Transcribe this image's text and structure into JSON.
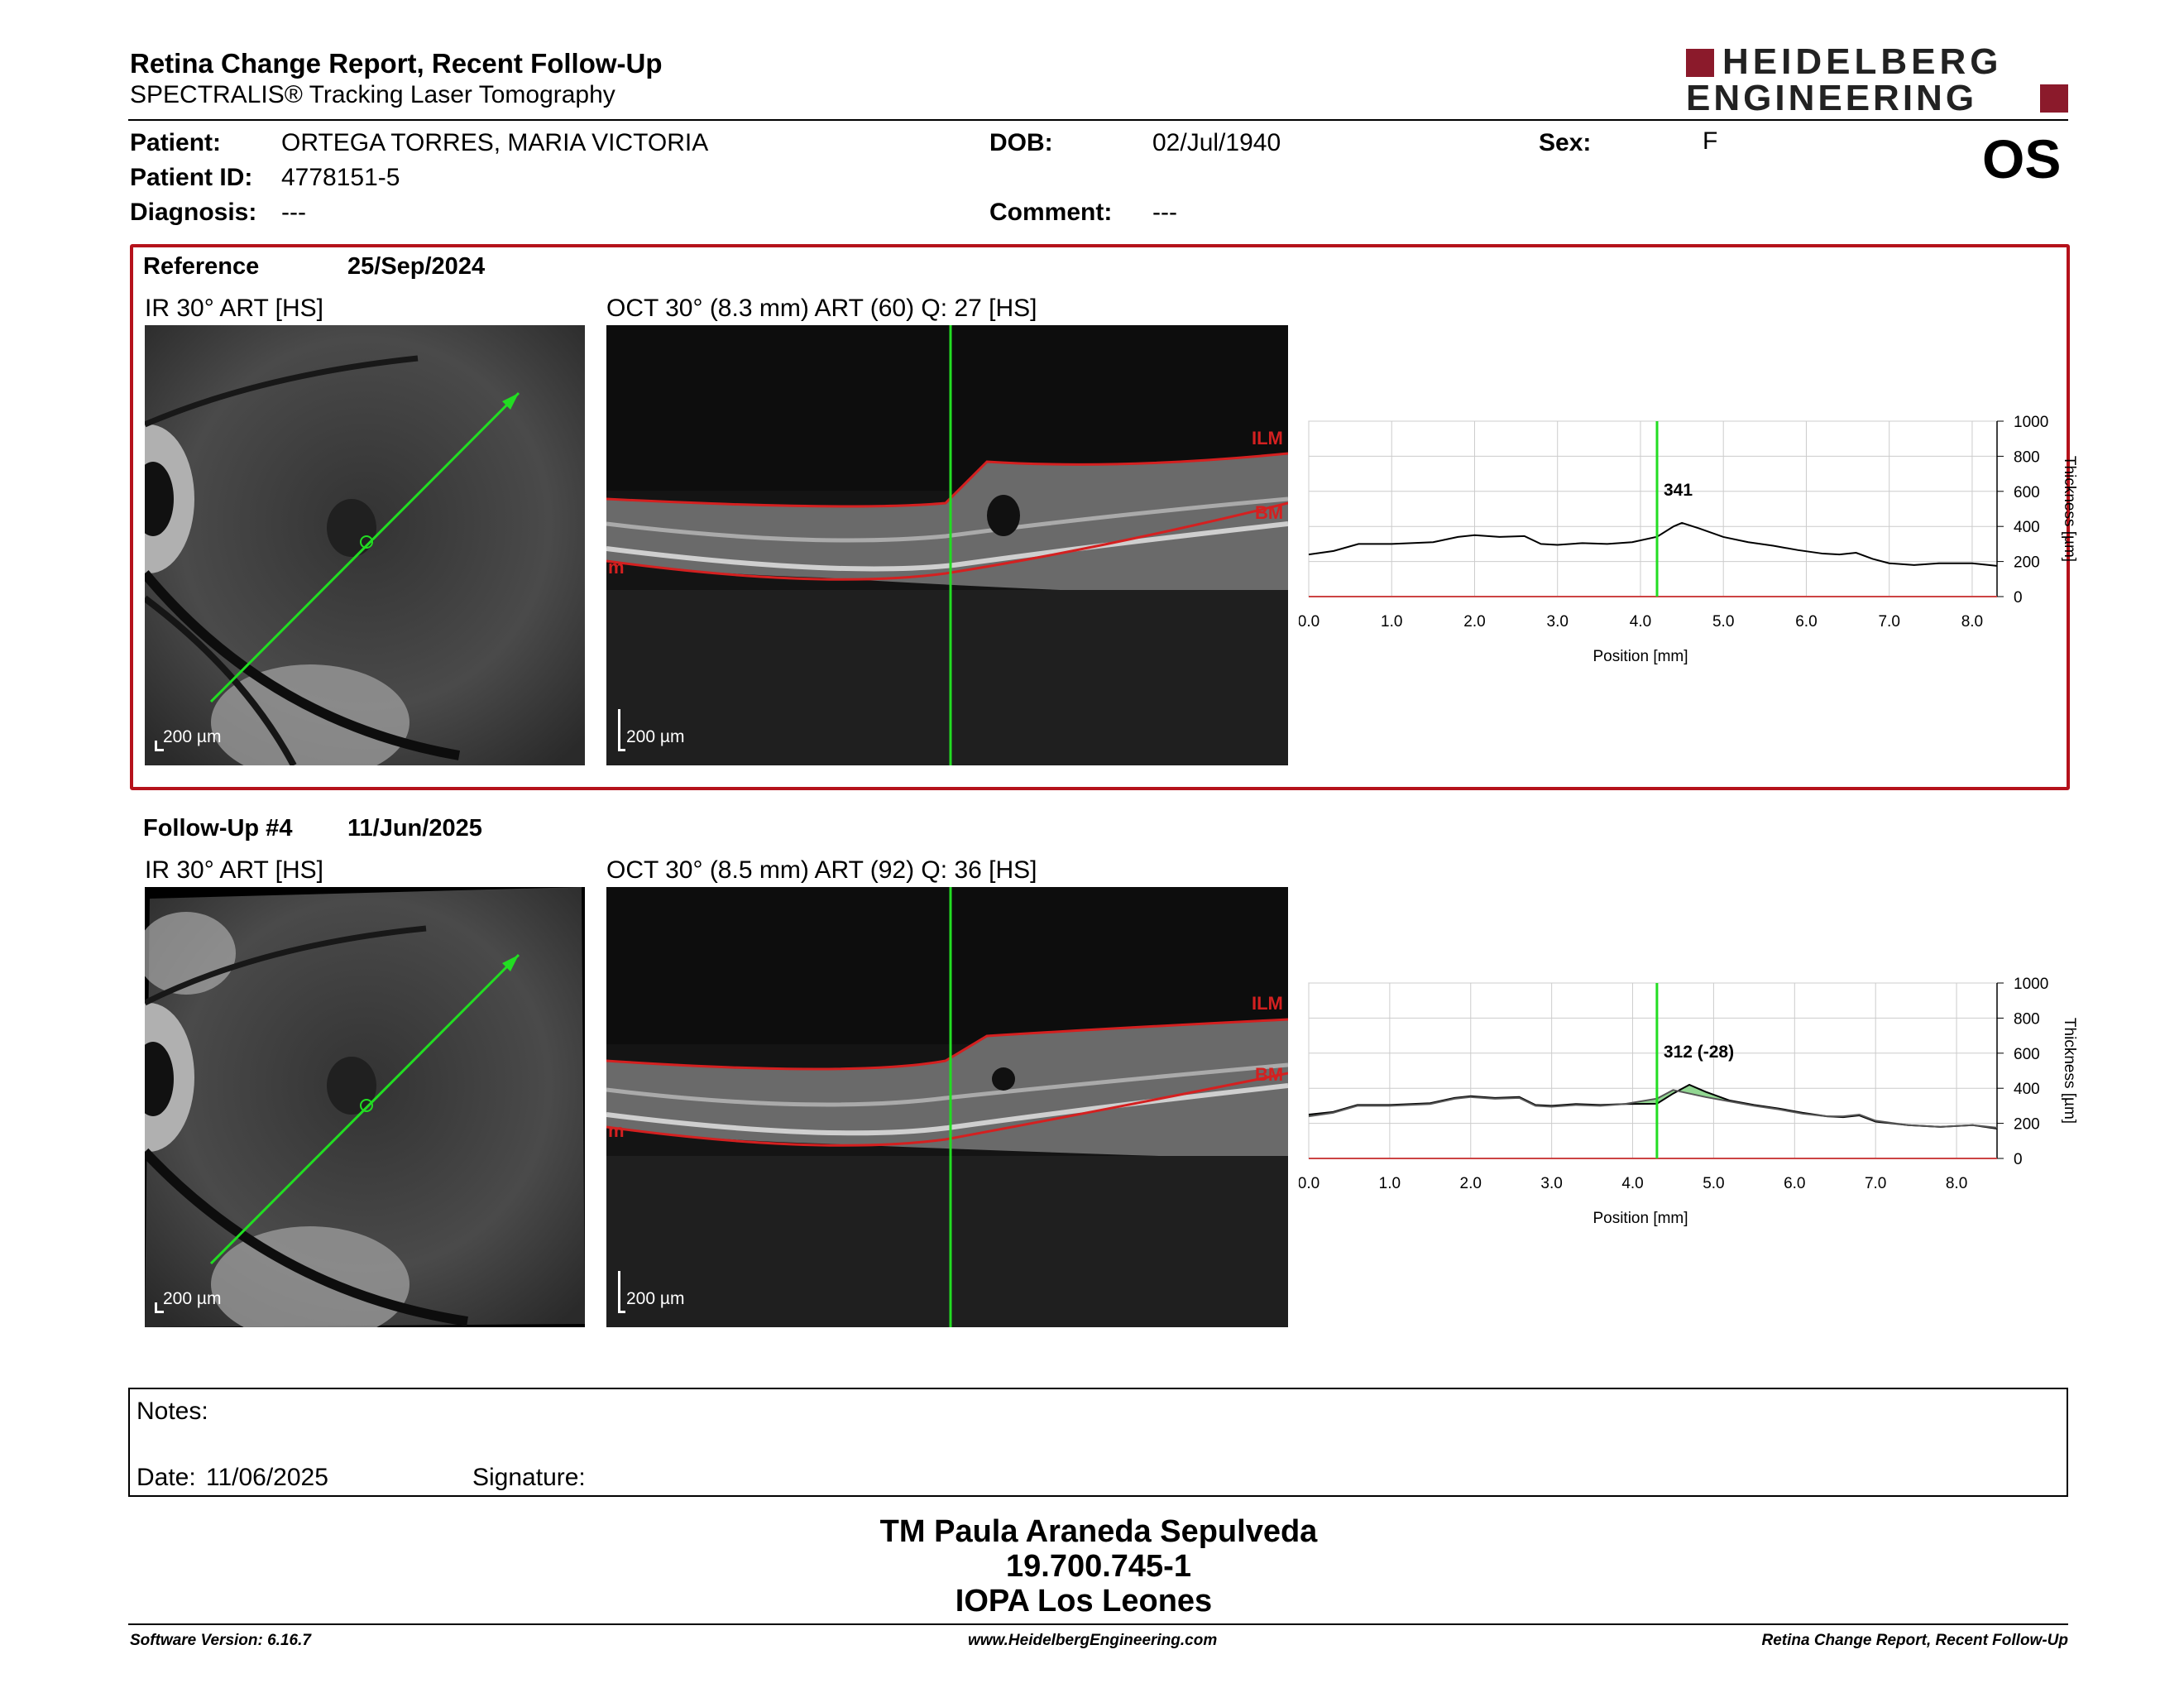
{
  "header": {
    "title": "Retina Change Report, Recent Follow-Up",
    "subtitle": "SPECTRALIS® Tracking Laser Tomography",
    "logo_line1": "HEIDELBERG",
    "logo_line2": "ENGINEERING",
    "eye": "OS"
  },
  "patient": {
    "patient_label": "Patient:",
    "patient_value": "ORTEGA TORRES, MARIA VICTORIA",
    "id_label": "Patient ID:",
    "id_value": "4778151-5",
    "diagnosis_label": "Diagnosis:",
    "diagnosis_value": "---",
    "dob_label": "DOB:",
    "dob_value": "02/Jul/1940",
    "comment_label": "Comment:",
    "comment_value": "---",
    "sex_label": "Sex:",
    "sex_value": "F"
  },
  "colors": {
    "frame_red": "#b5121b",
    "scan_green": "#22dd22",
    "segmentation_red": "#d42020",
    "brand": "#8b1a2b"
  },
  "reference": {
    "label": "Reference",
    "date": "25/Sep/2024",
    "ir_title": "IR 30° ART [HS]",
    "oct_title": "OCT 30° (8.3 mm) ART (60) Q: 27 [HS]",
    "ir_scale": "200 µm",
    "oct_scale": "200 µm",
    "ilm_label": "ILM",
    "bm_label": "BM",
    "m_label": "m"
  },
  "followup": {
    "label": "Follow-Up #4",
    "date": "11/Jun/2025",
    "ir_title": "IR 30° ART [HS]",
    "oct_title": "OCT 30° (8.5 mm) ART (92) Q: 36 [HS]",
    "ir_scale": "200 µm",
    "oct_scale": "200 µm",
    "ilm_label": "ILM",
    "bm_label": "BM",
    "m_label": "m"
  },
  "chart_data": [
    {
      "type": "line",
      "xlabel": "Position [mm]",
      "ylabel": "Thickness [µm]",
      "xlim": [
        0,
        8.3
      ],
      "ylim": [
        0,
        1000
      ],
      "xticks": [
        "0.0",
        "1.0",
        "2.0",
        "3.0",
        "4.0",
        "5.0",
        "6.0",
        "7.0",
        "8.0"
      ],
      "yticks": [
        "0",
        "200",
        "400",
        "600",
        "800",
        "1000"
      ],
      "grid": true,
      "marker_x": 4.2,
      "marker_label": "341",
      "series": [
        {
          "x": [
            0,
            0.3,
            0.6,
            1.0,
            1.5,
            1.8,
            2.0,
            2.3,
            2.6,
            2.8,
            3.0,
            3.3,
            3.6,
            3.9,
            4.2,
            4.4,
            4.5,
            4.7,
            5.0,
            5.3,
            5.6,
            5.9,
            6.2,
            6.4,
            6.6,
            6.8,
            7.0,
            7.3,
            7.6,
            8.0,
            8.3
          ],
          "y": [
            240,
            260,
            300,
            300,
            310,
            340,
            350,
            340,
            345,
            300,
            295,
            305,
            300,
            310,
            341,
            400,
            420,
            390,
            340,
            310,
            290,
            265,
            245,
            240,
            250,
            215,
            190,
            180,
            190,
            190,
            175
          ]
        }
      ]
    },
    {
      "type": "line",
      "xlabel": "Position [mm]",
      "ylabel": "Thickness [µm]",
      "xlim": [
        0,
        8.5
      ],
      "ylim": [
        0,
        1000
      ],
      "xticks": [
        "0.0",
        "1.0",
        "2.0",
        "3.0",
        "4.0",
        "5.0",
        "6.0",
        "7.0",
        "8.0"
      ],
      "yticks": [
        "0",
        "200",
        "400",
        "600",
        "800",
        "1000"
      ],
      "grid": true,
      "marker_x": 4.3,
      "marker_label": "312 (-28)",
      "series": [
        {
          "x": [
            0,
            0.3,
            0.6,
            1.0,
            1.5,
            1.8,
            2.0,
            2.3,
            2.6,
            2.8,
            3.0,
            3.3,
            3.6,
            3.9,
            4.3,
            4.5,
            4.7,
            4.9,
            5.2,
            5.5,
            5.8,
            6.1,
            6.4,
            6.6,
            6.8,
            7.0,
            7.4,
            7.8,
            8.2,
            8.5
          ],
          "y": [
            250,
            265,
            305,
            305,
            315,
            345,
            355,
            345,
            350,
            305,
            300,
            310,
            305,
            310,
            312,
            370,
            420,
            380,
            330,
            305,
            285,
            260,
            240,
            235,
            245,
            210,
            190,
            180,
            190,
            170
          ]
        },
        {
          "x": [
            0,
            0.3,
            0.6,
            1.0,
            1.5,
            1.8,
            2.0,
            2.3,
            2.6,
            2.8,
            3.0,
            3.3,
            3.6,
            3.9,
            4.3,
            4.5,
            4.7,
            4.9,
            5.2,
            5.5,
            5.8,
            6.1,
            6.4,
            6.6,
            6.8,
            7.0,
            7.4,
            7.8,
            8.2,
            8.5
          ],
          "y": [
            240,
            260,
            300,
            300,
            310,
            340,
            350,
            340,
            345,
            300,
            295,
            305,
            300,
            310,
            341,
            390,
            370,
            350,
            325,
            300,
            280,
            255,
            240,
            240,
            250,
            215,
            190,
            180,
            190,
            175
          ]
        }
      ]
    }
  ],
  "notes": {
    "notes_label": "Notes:",
    "date_label": "Date:",
    "date_value": "11/06/2025",
    "signature_label": "Signature:"
  },
  "operator": {
    "name": "TM Paula Araneda Sepulveda",
    "id": "19.700.745-1",
    "clinic": "IOPA Los Leones"
  },
  "footer": {
    "software": "Software Version: 6.16.7",
    "website": "www.HeidelbergEngineering.com",
    "report": "Retina Change Report, Recent Follow-Up"
  }
}
